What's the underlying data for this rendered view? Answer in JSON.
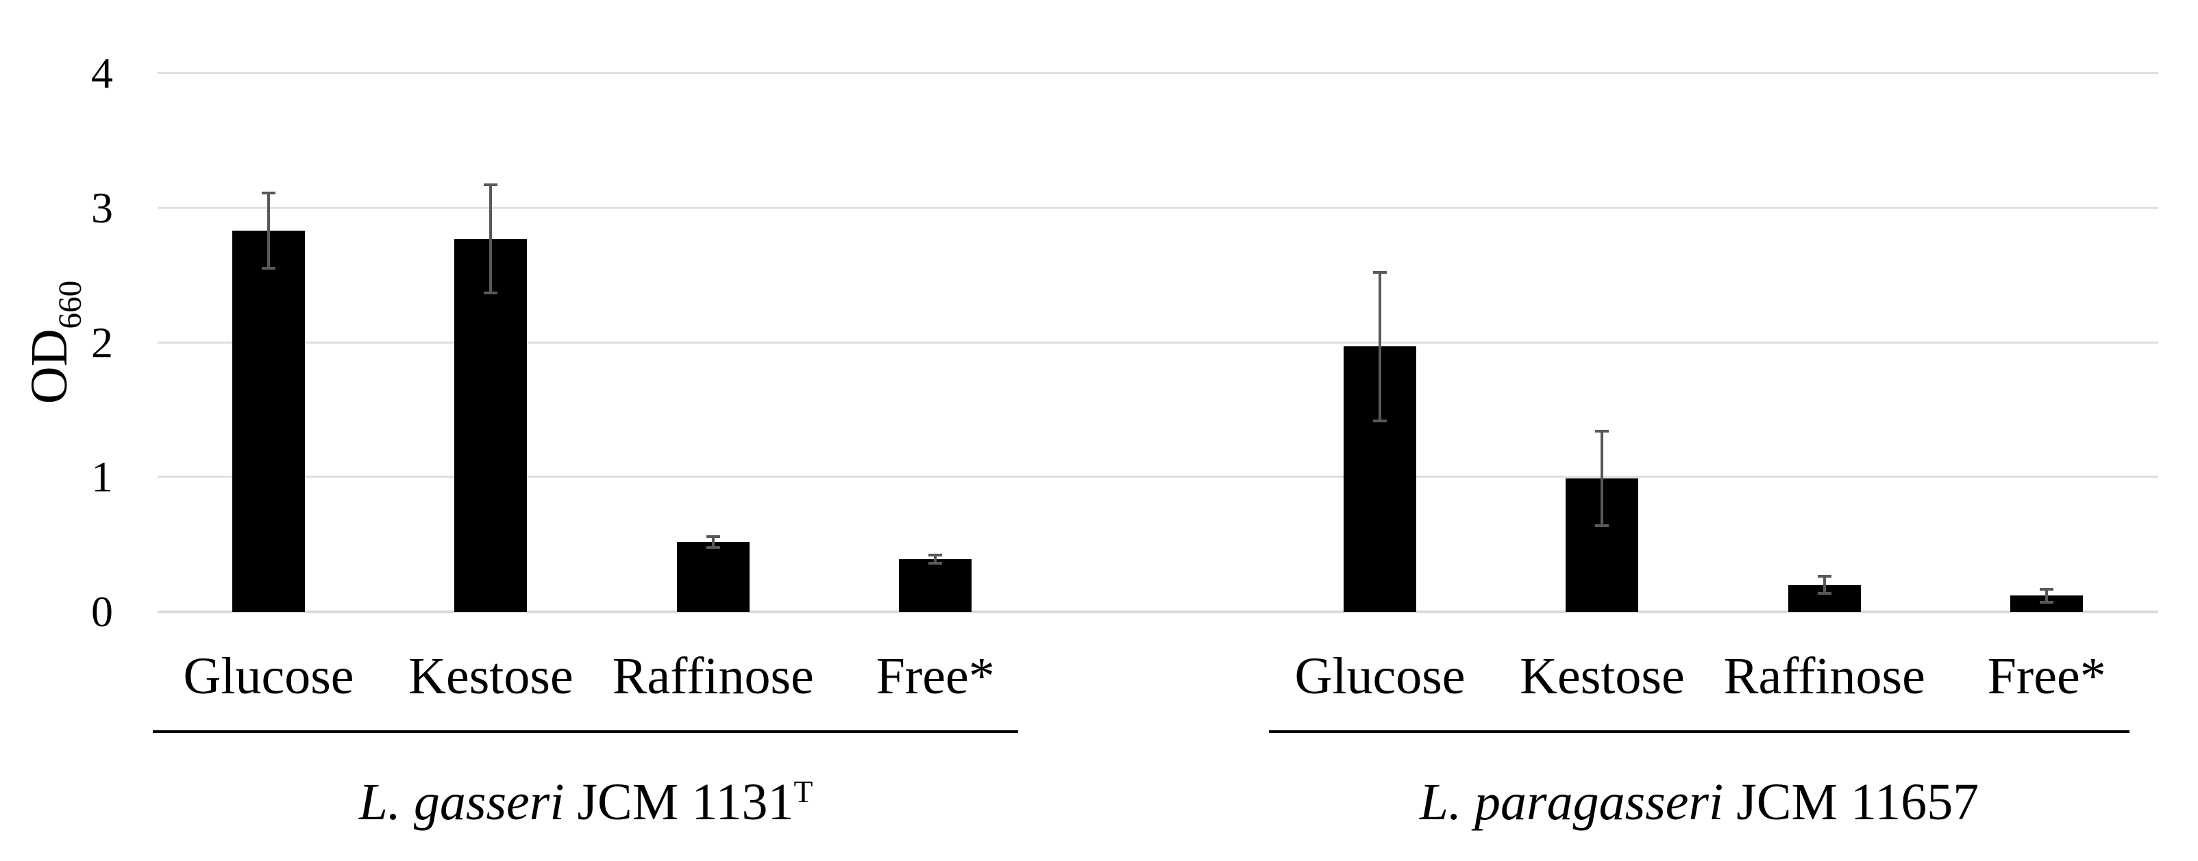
{
  "chart_data": {
    "type": "bar",
    "title": "",
    "ylabel_main": "OD",
    "ylabel_sub": "660",
    "ylim": [
      0,
      4
    ],
    "yticks": [
      4,
      3,
      2,
      1,
      0
    ],
    "grid": "horizontal",
    "legend": "none",
    "bar_color": "#000000",
    "error_bar_color": "#595959",
    "gridline_color": "#dfdfdf",
    "groups": [
      {
        "title_italic": "L. gasseri",
        "title_roman": " JCM 1131",
        "title_sup": "T",
        "categories": [
          "Glucose",
          "Kestose",
          "Raffinose",
          "Free*"
        ],
        "values": [
          2.83,
          2.77,
          0.52,
          0.39
        ],
        "errors": [
          0.28,
          0.4,
          0.04,
          0.03
        ]
      },
      {
        "title_italic": "L. paragasseri",
        "title_roman": " JCM 11657",
        "title_sup": "",
        "categories": [
          "Glucose",
          "Kestose",
          "Raffinose",
          "Free*"
        ],
        "values": [
          1.97,
          0.99,
          0.2,
          0.12
        ],
        "errors": [
          0.55,
          0.35,
          0.065,
          0.05
        ]
      }
    ]
  }
}
